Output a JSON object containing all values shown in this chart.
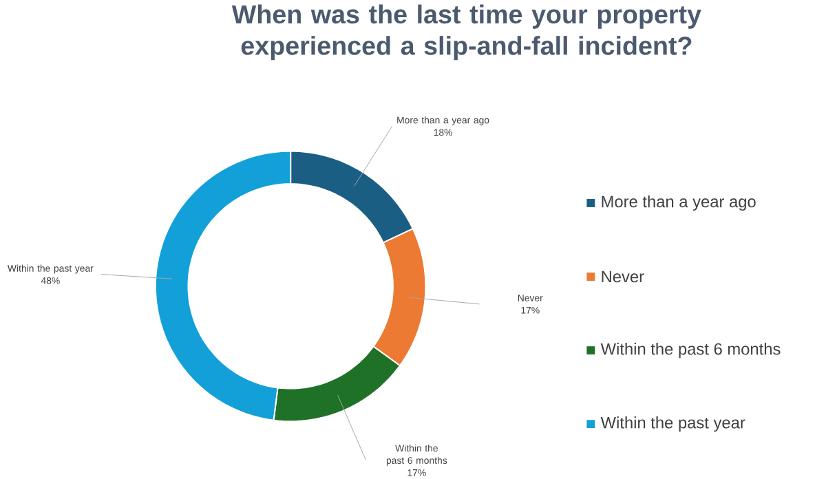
{
  "chart_data": {
    "type": "donut",
    "title": "When was the last time your property experienced a slip-and-fall incident?",
    "categories": [
      "More than a year ago",
      "Never",
      "Within the past 6 months",
      "Within the past year"
    ],
    "values": [
      18,
      17,
      17,
      48
    ],
    "value_labels": [
      "18%",
      "17%",
      "17%",
      "48%"
    ],
    "colors": [
      "#1b5e84",
      "#ec7a33",
      "#1f7128",
      "#13a0d8"
    ],
    "legend": "right"
  }
}
